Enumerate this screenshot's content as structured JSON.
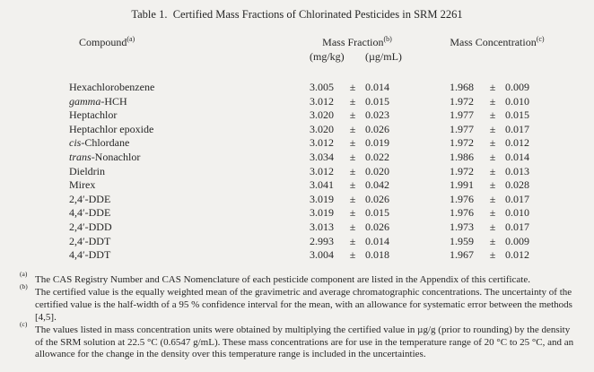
{
  "page": {
    "background_color": "#f2f1ee",
    "text_color": "#262626",
    "title": "Table 1.  Certified Mass Fractions of Chlorinated Pesticides in SRM 2261"
  },
  "table": {
    "plus_minus": "±",
    "columns": {
      "compound": {
        "label": "Compound",
        "sup": "(a)"
      },
      "mass_fraction": {
        "label": "Mass Fraction",
        "sup": "(b)",
        "unit": "(mg/kg)"
      },
      "mass_concentration": {
        "label": "Mass Concentration",
        "sup": "(c)",
        "unit": "(µg/mL)"
      }
    },
    "rows": [
      {
        "em": "",
        "name": "Hexachlorobenzene",
        "mf": "3.005",
        "mf_unc": "0.014",
        "mc": "1.968",
        "mc_unc": "0.009"
      },
      {
        "em": "gamma",
        "name": "-HCH",
        "mf": "3.012",
        "mf_unc": "0.015",
        "mc": "1.972",
        "mc_unc": "0.010"
      },
      {
        "em": "",
        "name": "Heptachlor",
        "mf": "3.020",
        "mf_unc": "0.023",
        "mc": "1.977",
        "mc_unc": "0.015"
      },
      {
        "em": "",
        "name": "Heptachlor epoxide",
        "mf": "3.020",
        "mf_unc": "0.026",
        "mc": "1.977",
        "mc_unc": "0.017"
      },
      {
        "em": "cis",
        "name": "-Chlordane",
        "mf": "3.012",
        "mf_unc": "0.019",
        "mc": "1.972",
        "mc_unc": "0.012"
      },
      {
        "em": "trans",
        "name": "-Nonachlor",
        "mf": "3.034",
        "mf_unc": "0.022",
        "mc": "1.986",
        "mc_unc": "0.014"
      },
      {
        "em": "",
        "name": "Dieldrin",
        "mf": "3.012",
        "mf_unc": "0.020",
        "mc": "1.972",
        "mc_unc": "0.013"
      },
      {
        "em": "",
        "name": "Mirex",
        "mf": "3.041",
        "mf_unc": "0.042",
        "mc": "1.991",
        "mc_unc": "0.028"
      },
      {
        "em": "",
        "name": "2,4′-DDE",
        "mf": "3.019",
        "mf_unc": "0.026",
        "mc": "1.976",
        "mc_unc": "0.017"
      },
      {
        "em": "",
        "name": "4,4′-DDE",
        "mf": "3.019",
        "mf_unc": "0.015",
        "mc": "1.976",
        "mc_unc": "0.010"
      },
      {
        "em": "",
        "name": "2,4′-DDD",
        "mf": "3.013",
        "mf_unc": "0.026",
        "mc": "1.973",
        "mc_unc": "0.017"
      },
      {
        "em": "",
        "name": "2,4′-DDT",
        "mf": "2.993",
        "mf_unc": "0.014",
        "mc": "1.959",
        "mc_unc": "0.009"
      },
      {
        "em": "",
        "name": "4,4′-DDT",
        "mf": "3.004",
        "mf_unc": "0.018",
        "mc": "1.967",
        "mc_unc": "0.012"
      }
    ]
  },
  "footnotes": [
    {
      "marker": "(a)",
      "text": "The CAS Registry Number and CAS Nomenclature of each pesticide component are listed in the Appendix of this certificate."
    },
    {
      "marker": "(b)",
      "text": "The certified value is the equally weighted mean of the gravimetric and average chromatographic concentrations. The uncertainty of the certified value is the half-width of a 95 % confidence interval for the mean, with an allowance for systematic error between the methods [4,5]."
    },
    {
      "marker": "(c)",
      "text": "The values listed in mass concentration units were obtained by multiplying the certified value in µg/g (prior to rounding) by the density of the SRM solution at 22.5 °C (0.6547 g/mL).  These mass concentrations are for use in the temperature range of 20 °C to 25 °C, and an allowance for the change in the density over this temperature range is included in the uncertainties."
    }
  ]
}
